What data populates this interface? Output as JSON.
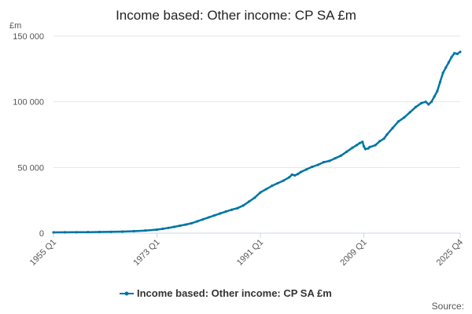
{
  "chart_data": {
    "type": "line",
    "title": "Income based: Other income: CP SA £m",
    "ylabel": "£m",
    "source_label": "Source:",
    "ylim": [
      0,
      150000
    ],
    "yticks": [
      {
        "value": 0,
        "label": "0"
      },
      {
        "value": 50000,
        "label": "50 000"
      },
      {
        "value": 100000,
        "label": "100 000"
      },
      {
        "value": 150000,
        "label": "150 000"
      }
    ],
    "xlim": [
      1955.0,
      2025.75
    ],
    "xticks": [
      {
        "value": 1955.0,
        "label": "1955 Q1"
      },
      {
        "value": 1973.0,
        "label": "1973 Q1"
      },
      {
        "value": 1991.0,
        "label": "1991 Q1"
      },
      {
        "value": 2009.0,
        "label": "2009 Q1"
      },
      {
        "value": 2025.75,
        "label": "2025 Q4"
      }
    ],
    "legend_position": "bottom",
    "color": "#0075a3",
    "series": [
      {
        "name": "Income based: Other income: CP SA £m",
        "points": [
          [
            1955.0,
            600
          ],
          [
            1957.0,
            650
          ],
          [
            1959.0,
            700
          ],
          [
            1961.0,
            800
          ],
          [
            1963.0,
            900
          ],
          [
            1965.0,
            1000
          ],
          [
            1967.0,
            1200
          ],
          [
            1969.0,
            1500
          ],
          [
            1971.0,
            2000
          ],
          [
            1973.0,
            2700
          ],
          [
            1974.0,
            3300
          ],
          [
            1975.0,
            4000
          ],
          [
            1976.0,
            4800
          ],
          [
            1977.0,
            5700
          ],
          [
            1978.0,
            6500
          ],
          [
            1979.0,
            7500
          ],
          [
            1980.0,
            9000
          ],
          [
            1981.0,
            10500
          ],
          [
            1982.0,
            12000
          ],
          [
            1983.0,
            13500
          ],
          [
            1984.0,
            15000
          ],
          [
            1985.0,
            16500
          ],
          [
            1986.0,
            17800
          ],
          [
            1987.0,
            19000
          ],
          [
            1988.0,
            21000
          ],
          [
            1989.0,
            24000
          ],
          [
            1990.0,
            27000
          ],
          [
            1991.0,
            31000
          ],
          [
            1992.0,
            33500
          ],
          [
            1993.0,
            36000
          ],
          [
            1994.0,
            38000
          ],
          [
            1995.0,
            40000
          ],
          [
            1996.0,
            42500
          ],
          [
            1996.5,
            44500
          ],
          [
            1997.0,
            44000
          ],
          [
            1997.5,
            45000
          ],
          [
            1998.0,
            46500
          ],
          [
            1999.0,
            48500
          ],
          [
            2000.0,
            50500
          ],
          [
            2001.0,
            52000
          ],
          [
            2002.0,
            54000
          ],
          [
            2003.0,
            55000
          ],
          [
            2004.0,
            57000
          ],
          [
            2005.0,
            59000
          ],
          [
            2006.0,
            62000
          ],
          [
            2007.0,
            65000
          ],
          [
            2007.75,
            67000
          ],
          [
            2008.25,
            68500
          ],
          [
            2008.75,
            69500
          ],
          [
            2009.0,
            66000
          ],
          [
            2009.25,
            64000
          ],
          [
            2009.75,
            64500
          ],
          [
            2010.0,
            65500
          ],
          [
            2011.0,
            67000
          ],
          [
            2011.75,
            70000
          ],
          [
            2012.5,
            72000
          ],
          [
            2013.0,
            75000
          ],
          [
            2014.0,
            80000
          ],
          [
            2015.0,
            85000
          ],
          [
            2016.0,
            88000
          ],
          [
            2017.0,
            92000
          ],
          [
            2018.0,
            96000
          ],
          [
            2019.0,
            99000
          ],
          [
            2019.75,
            100000
          ],
          [
            2020.25,
            98000
          ],
          [
            2020.75,
            100000
          ],
          [
            2021.25,
            104000
          ],
          [
            2021.75,
            108000
          ],
          [
            2022.25,
            115000
          ],
          [
            2022.75,
            122000
          ],
          [
            2023.25,
            126000
          ],
          [
            2023.75,
            130000
          ],
          [
            2024.25,
            134000
          ],
          [
            2024.75,
            137000
          ],
          [
            2025.25,
            136500
          ],
          [
            2025.75,
            138000
          ]
        ]
      }
    ]
  }
}
